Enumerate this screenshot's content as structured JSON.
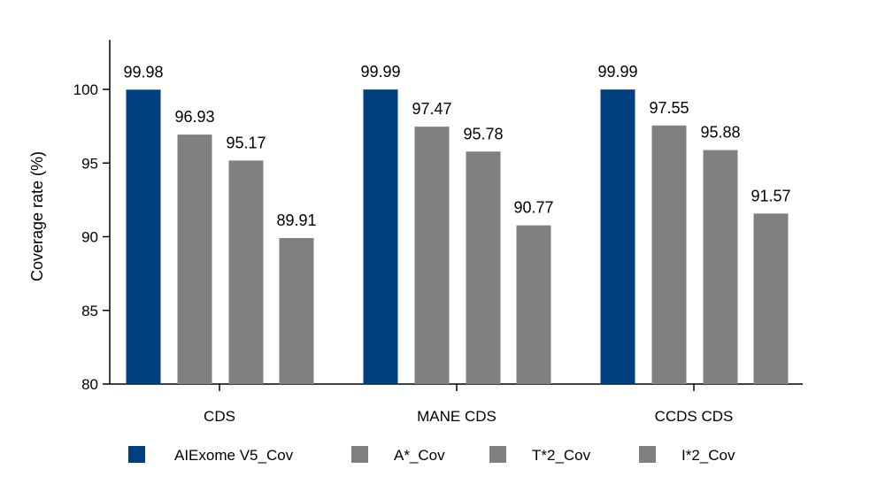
{
  "chart_data": {
    "type": "bar",
    "title": "",
    "xlabel": "",
    "ylabel": "Coverage rate (%)",
    "ylim": [
      80,
      100
    ],
    "yticks": [
      80,
      85,
      90,
      95,
      100
    ],
    "categories": [
      "CDS",
      "MANE CDS",
      "CCDS CDS"
    ],
    "series": [
      {
        "name": "AIExome V5_Cov",
        "color": "#003f7f",
        "values": [
          99.98,
          99.99,
          99.99
        ]
      },
      {
        "name": "A*_Cov",
        "color": "#808080",
        "values": [
          96.93,
          97.47,
          97.55
        ]
      },
      {
        "name": "T*2_Cov",
        "color": "#808080",
        "values": [
          95.17,
          95.78,
          95.88
        ]
      },
      {
        "name": "I*2_Cov",
        "color": "#808080",
        "values": [
          89.91,
          90.77,
          91.57
        ]
      }
    ],
    "data_labels": true,
    "grid": false,
    "legend_position": "bottom"
  }
}
